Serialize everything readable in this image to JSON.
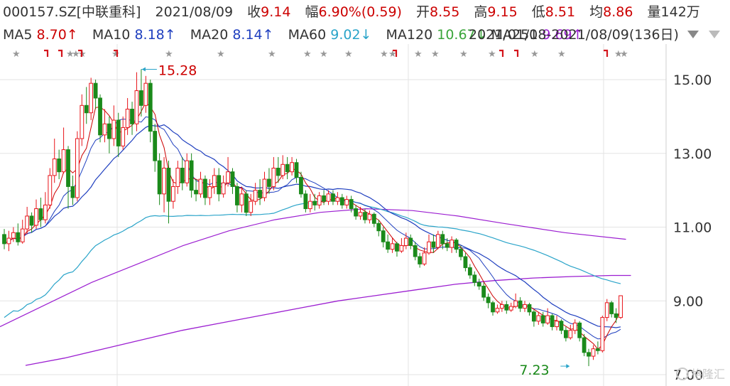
{
  "header": {
    "code_name": "000157.SZ[中联重科]",
    "date": "2021/08/09",
    "close_label": "收",
    "close_value": "9.14",
    "change_label": "幅",
    "change_value": "6.90%(0.59)",
    "open_label": "开",
    "open_value": "8.55",
    "high_label": "高",
    "high_value": "9.15",
    "low_label": "低",
    "low_value": "8.51",
    "avg_label": "均",
    "avg_value": "8.86",
    "volume_label": "量",
    "volume_value": "142万"
  },
  "ma_bar": {
    "ma5_label": "MA5",
    "ma5_value": "8.70↑",
    "ma10_label": "MA10",
    "ma10_value": "8.18↑",
    "ma20_label": "MA20",
    "ma20_value": "8.14↑",
    "ma60_label": "MA60",
    "ma60_value": "9.02↓",
    "ma120_label": "MA120",
    "ma120_value": "10.67↓",
    "ma250_label": "MA250",
    "ma250_value": "9.69↑",
    "range_text": "2021/01/18-2021/08/09(136日)"
  },
  "colors": {
    "up": "#e8141a",
    "down": "#1a8a1a",
    "ma5": "#cc0000",
    "ma10": "#1f3fbf",
    "ma20": "#2aa4c9",
    "ma60": "#3aa53a",
    "ma120": "#9c1fd1",
    "ma250": "#9c1fd1",
    "grid": "#e3e3e3",
    "axis_text": "#333333"
  },
  "watermark": "格隆汇",
  "chart_data": {
    "type": "candlestick",
    "ylim": [
      7.0,
      15.8
    ],
    "yticks": [
      7.0,
      9.0,
      11.0,
      13.0,
      15.0
    ],
    "ytick_labels": [
      "7.00",
      "9.00",
      "11.00",
      "13.00",
      "15.00"
    ],
    "annotations": [
      {
        "text": "15.28",
        "index": 30,
        "price": 15.28
      },
      {
        "text": "7.23",
        "index": 124,
        "price": 7.23
      }
    ],
    "candles": [
      [
        10.8,
        10.55,
        10.95,
        10.4
      ],
      [
        10.55,
        10.7,
        10.9,
        10.35
      ],
      [
        10.7,
        10.85,
        11.0,
        10.6
      ],
      [
        10.85,
        10.6,
        11.1,
        10.5
      ],
      [
        10.6,
        10.95,
        11.2,
        10.55
      ],
      [
        10.95,
        11.3,
        11.55,
        10.8
      ],
      [
        11.3,
        11.05,
        11.4,
        10.85
      ],
      [
        11.05,
        11.5,
        11.75,
        10.95
      ],
      [
        11.5,
        11.2,
        11.8,
        11.0
      ],
      [
        11.2,
        11.6,
        11.95,
        11.1
      ],
      [
        11.6,
        12.4,
        12.6,
        11.5
      ],
      [
        12.4,
        12.85,
        13.4,
        12.2
      ],
      [
        12.85,
        12.5,
        13.1,
        12.3
      ],
      [
        12.5,
        13.1,
        13.7,
        12.45
      ],
      [
        13.1,
        12.1,
        13.2,
        11.5
      ],
      [
        12.1,
        11.8,
        12.4,
        11.6
      ],
      [
        11.8,
        13.4,
        13.6,
        11.7
      ],
      [
        13.4,
        14.3,
        14.6,
        13.2
      ],
      [
        14.3,
        14.1,
        14.8,
        13.8
      ],
      [
        14.1,
        14.9,
        15.05,
        13.9
      ],
      [
        14.9,
        14.5,
        15.0,
        14.2
      ],
      [
        14.5,
        13.5,
        14.6,
        13.3
      ],
      [
        13.5,
        13.8,
        14.2,
        13.3
      ],
      [
        13.8,
        13.4,
        14.0,
        13.0
      ],
      [
        13.4,
        13.9,
        14.3,
        13.2
      ],
      [
        13.9,
        13.2,
        14.1,
        12.9
      ],
      [
        13.2,
        13.7,
        14.0,
        13.1
      ],
      [
        13.7,
        14.2,
        14.5,
        13.5
      ],
      [
        14.2,
        13.8,
        14.4,
        13.5
      ],
      [
        13.8,
        14.7,
        15.2,
        13.6
      ],
      [
        14.7,
        14.3,
        15.28,
        14.0
      ],
      [
        14.3,
        14.9,
        15.1,
        14.1
      ],
      [
        14.9,
        13.6,
        15.0,
        13.3
      ],
      [
        13.6,
        12.8,
        13.8,
        12.5
      ],
      [
        12.8,
        11.9,
        13.0,
        11.6
      ],
      [
        11.9,
        12.6,
        12.9,
        11.4
      ],
      [
        12.6,
        11.7,
        12.8,
        11.1
      ],
      [
        11.7,
        12.1,
        12.3,
        11.5
      ],
      [
        12.1,
        12.6,
        12.8,
        11.9
      ],
      [
        12.6,
        12.2,
        12.9,
        12.0
      ],
      [
        12.2,
        12.8,
        13.0,
        12.1
      ],
      [
        12.8,
        12.0,
        13.0,
        11.8
      ],
      [
        12.0,
        11.9,
        12.3,
        11.7
      ],
      [
        11.9,
        12.3,
        12.5,
        11.8
      ],
      [
        12.3,
        11.8,
        12.4,
        11.6
      ],
      [
        11.8,
        12.1,
        12.3,
        11.6
      ],
      [
        12.1,
        12.4,
        12.6,
        11.9
      ],
      [
        12.4,
        11.9,
        12.6,
        11.7
      ],
      [
        11.9,
        12.2,
        12.4,
        11.8
      ],
      [
        12.2,
        12.5,
        12.9,
        12.1
      ],
      [
        12.5,
        12.1,
        12.6,
        11.9
      ],
      [
        12.1,
        11.6,
        12.2,
        11.4
      ],
      [
        11.6,
        11.9,
        12.1,
        11.4
      ],
      [
        11.9,
        11.4,
        12.0,
        11.3
      ],
      [
        11.4,
        11.7,
        11.9,
        11.3
      ],
      [
        11.7,
        12.0,
        12.2,
        11.6
      ],
      [
        12.0,
        11.8,
        12.3,
        11.6
      ],
      [
        11.8,
        12.3,
        12.5,
        11.7
      ],
      [
        12.3,
        12.1,
        12.6,
        11.9
      ],
      [
        12.1,
        12.6,
        12.9,
        12.0
      ],
      [
        12.6,
        12.4,
        12.9,
        12.2
      ],
      [
        12.4,
        12.7,
        12.95,
        12.3
      ],
      [
        12.7,
        12.5,
        12.9,
        12.3
      ],
      [
        12.5,
        12.75,
        12.9,
        12.4
      ],
      [
        12.75,
        12.35,
        12.85,
        12.2
      ],
      [
        12.35,
        11.9,
        12.5,
        11.8
      ],
      [
        11.9,
        11.5,
        12.0,
        11.4
      ],
      [
        11.5,
        11.7,
        11.9,
        11.4
      ],
      [
        11.7,
        11.6,
        11.9,
        11.45
      ],
      [
        11.6,
        11.85,
        11.95,
        11.5
      ],
      [
        11.85,
        11.7,
        12.0,
        11.6
      ],
      [
        11.7,
        11.9,
        12.0,
        11.6
      ],
      [
        11.9,
        11.7,
        12.0,
        11.6
      ],
      [
        11.7,
        11.8,
        11.95,
        11.6
      ],
      [
        11.8,
        11.6,
        11.9,
        11.5
      ],
      [
        11.6,
        11.75,
        11.85,
        11.5
      ],
      [
        11.75,
        11.5,
        11.85,
        11.4
      ],
      [
        11.5,
        11.3,
        11.6,
        11.2
      ],
      [
        11.3,
        11.4,
        11.55,
        11.2
      ],
      [
        11.4,
        11.2,
        11.5,
        11.1
      ],
      [
        11.2,
        11.35,
        11.45,
        11.1
      ],
      [
        11.35,
        11.1,
        11.4,
        11.0
      ],
      [
        11.1,
        10.9,
        11.2,
        10.75
      ],
      [
        10.9,
        10.6,
        11.0,
        10.45
      ],
      [
        10.6,
        10.4,
        10.8,
        10.3
      ],
      [
        10.4,
        10.55,
        10.7,
        10.3
      ],
      [
        10.55,
        10.35,
        10.6,
        10.2
      ],
      [
        10.35,
        10.5,
        10.7,
        10.3
      ],
      [
        10.5,
        10.7,
        10.85,
        10.4
      ],
      [
        10.7,
        10.5,
        10.8,
        10.4
      ],
      [
        10.5,
        10.2,
        10.6,
        10.1
      ],
      [
        10.2,
        10.0,
        10.3,
        9.9
      ],
      [
        10.0,
        10.3,
        10.45,
        9.95
      ],
      [
        10.3,
        10.6,
        10.8,
        10.25
      ],
      [
        10.6,
        10.45,
        10.8,
        10.3
      ],
      [
        10.45,
        10.8,
        10.9,
        10.4
      ],
      [
        10.8,
        10.55,
        10.9,
        10.4
      ],
      [
        10.55,
        10.45,
        10.7,
        10.35
      ],
      [
        10.45,
        10.65,
        10.75,
        10.3
      ],
      [
        10.65,
        10.4,
        10.7,
        10.3
      ],
      [
        10.4,
        10.2,
        10.5,
        10.1
      ],
      [
        10.2,
        9.9,
        10.3,
        9.8
      ],
      [
        9.9,
        9.7,
        10.0,
        9.6
      ],
      [
        9.7,
        9.5,
        9.8,
        9.4
      ],
      [
        9.5,
        9.4,
        9.6,
        9.3
      ],
      [
        9.4,
        9.1,
        9.5,
        9.0
      ],
      [
        9.1,
        8.95,
        9.2,
        8.8
      ],
      [
        8.95,
        8.7,
        9.0,
        8.6
      ],
      [
        8.7,
        8.8,
        8.9,
        8.65
      ],
      [
        8.8,
        8.9,
        9.0,
        8.7
      ],
      [
        8.9,
        8.75,
        9.0,
        8.65
      ],
      [
        8.75,
        8.85,
        8.95,
        8.7
      ],
      [
        8.85,
        9.0,
        9.2,
        8.8
      ],
      [
        9.0,
        8.8,
        9.1,
        8.7
      ],
      [
        8.8,
        8.9,
        9.0,
        8.7
      ],
      [
        8.9,
        8.7,
        8.95,
        8.6
      ],
      [
        8.7,
        8.45,
        8.75,
        8.3
      ],
      [
        8.45,
        8.6,
        8.7,
        8.35
      ],
      [
        8.6,
        8.4,
        8.7,
        8.3
      ],
      [
        8.4,
        8.6,
        8.8,
        8.35
      ],
      [
        8.6,
        8.3,
        8.65,
        8.2
      ],
      [
        8.3,
        8.45,
        8.6,
        8.2
      ],
      [
        8.45,
        8.2,
        8.5,
        8.1
      ],
      [
        8.2,
        8.0,
        8.3,
        7.9
      ],
      [
        8.0,
        8.2,
        8.35,
        7.95
      ],
      [
        8.2,
        8.4,
        8.5,
        8.1
      ],
      [
        8.4,
        8.0,
        8.45,
        7.9
      ],
      [
        8.0,
        7.6,
        8.1,
        7.5
      ],
      [
        7.6,
        7.5,
        7.7,
        7.23
      ],
      [
        7.5,
        7.7,
        7.8,
        7.4
      ],
      [
        7.7,
        7.65,
        7.9,
        7.55
      ],
      [
        7.65,
        8.55,
        8.6,
        7.6
      ],
      [
        8.55,
        8.95,
        9.05,
        8.45
      ],
      [
        8.95,
        8.65,
        9.0,
        8.55
      ],
      [
        8.65,
        8.55,
        8.8,
        8.4
      ],
      [
        8.55,
        9.14,
        9.15,
        8.51
      ]
    ],
    "ma250": [
      [
        0,
        7.25
      ],
      [
        20,
        7.45
      ],
      [
        40,
        7.7
      ],
      [
        60,
        7.95
      ],
      [
        80,
        8.2
      ],
      [
        100,
        8.4
      ],
      [
        120,
        8.6
      ],
      [
        140,
        8.8
      ],
      [
        160,
        9.0
      ],
      [
        180,
        9.15
      ],
      [
        200,
        9.3
      ],
      [
        220,
        9.45
      ],
      [
        240,
        9.55
      ],
      [
        260,
        9.62
      ],
      [
        280,
        9.66
      ],
      [
        300,
        9.69
      ],
      [
        310,
        9.69
      ]
    ]
  }
}
